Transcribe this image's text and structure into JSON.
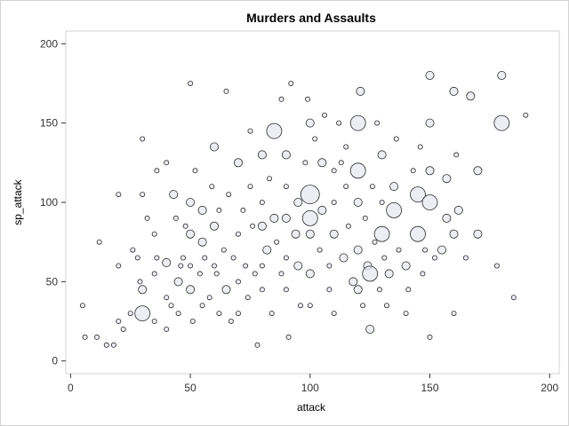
{
  "chart_data": {
    "type": "scatter",
    "subtype": "bubble",
    "title": "Murders and Assaults",
    "xlabel": "attack",
    "ylabel": "sp_attack",
    "xlim": [
      -2,
      204
    ],
    "ylim": [
      -8,
      208
    ],
    "xticks": [
      0,
      50,
      100,
      150,
      200
    ],
    "yticks": [
      0,
      50,
      100,
      150,
      200
    ],
    "grid": false,
    "legend": "none",
    "colors": {
      "fill": "#e6e8f0",
      "stroke": "#2b2b2b",
      "plot_border": "#d3d3d3",
      "frame_border": "#d3d3d3"
    },
    "points": [
      [
        5,
        35,
        1
      ],
      [
        6,
        15,
        1
      ],
      [
        11,
        15,
        1
      ],
      [
        12,
        75,
        1
      ],
      [
        15,
        10,
        1
      ],
      [
        18,
        10,
        1
      ],
      [
        20,
        60,
        1
      ],
      [
        20,
        105,
        1
      ],
      [
        20,
        25,
        1
      ],
      [
        22,
        20,
        1
      ],
      [
        25,
        30,
        1
      ],
      [
        26,
        70,
        1
      ],
      [
        28,
        65,
        1
      ],
      [
        29,
        50,
        1
      ],
      [
        30,
        30,
        3
      ],
      [
        30,
        45,
        2
      ],
      [
        30,
        140,
        1
      ],
      [
        30,
        105,
        1
      ],
      [
        32,
        90,
        1
      ],
      [
        35,
        25,
        1
      ],
      [
        35,
        55,
        1
      ],
      [
        35,
        80,
        1
      ],
      [
        36,
        120,
        1
      ],
      [
        36,
        65,
        1
      ],
      [
        40,
        40,
        1
      ],
      [
        40,
        62,
        2
      ],
      [
        40,
        125,
        1
      ],
      [
        40,
        20,
        1
      ],
      [
        42,
        35,
        1
      ],
      [
        43,
        105,
        2
      ],
      [
        44,
        90,
        1
      ],
      [
        45,
        50,
        2
      ],
      [
        45,
        30,
        1
      ],
      [
        46,
        60,
        1
      ],
      [
        47,
        65,
        1
      ],
      [
        48,
        85,
        1
      ],
      [
        50,
        175,
        1
      ],
      [
        50,
        60,
        1
      ],
      [
        50,
        45,
        2
      ],
      [
        50,
        100,
        2
      ],
      [
        50,
        80,
        2
      ],
      [
        51,
        25,
        1
      ],
      [
        52,
        120,
        1
      ],
      [
        54,
        55,
        1
      ],
      [
        55,
        95,
        2
      ],
      [
        55,
        75,
        2
      ],
      [
        55,
        35,
        1
      ],
      [
        56,
        65,
        1
      ],
      [
        58,
        40,
        1
      ],
      [
        59,
        110,
        1
      ],
      [
        60,
        135,
        2
      ],
      [
        60,
        85,
        2
      ],
      [
        60,
        60,
        1
      ],
      [
        61,
        55,
        1
      ],
      [
        62,
        95,
        1
      ],
      [
        62,
        30,
        1
      ],
      [
        64,
        70,
        1
      ],
      [
        65,
        45,
        2
      ],
      [
        65,
        170,
        1
      ],
      [
        66,
        105,
        1
      ],
      [
        67,
        25,
        1
      ],
      [
        68,
        65,
        1
      ],
      [
        70,
        80,
        1
      ],
      [
        70,
        50,
        1
      ],
      [
        70,
        30,
        1
      ],
      [
        70,
        125,
        2
      ],
      [
        72,
        95,
        1
      ],
      [
        73,
        60,
        1
      ],
      [
        74,
        40,
        1
      ],
      [
        75,
        110,
        1
      ],
      [
        75,
        145,
        1
      ],
      [
        76,
        85,
        1
      ],
      [
        77,
        55,
        1
      ],
      [
        78,
        10,
        1
      ],
      [
        80,
        130,
        2
      ],
      [
        80,
        85,
        2
      ],
      [
        80,
        100,
        1
      ],
      [
        80,
        60,
        1
      ],
      [
        80,
        45,
        1
      ],
      [
        82,
        70,
        2
      ],
      [
        83,
        115,
        1
      ],
      [
        84,
        30,
        1
      ],
      [
        85,
        145,
        3
      ],
      [
        85,
        90,
        2
      ],
      [
        86,
        75,
        1
      ],
      [
        88,
        165,
        1
      ],
      [
        88,
        55,
        1
      ],
      [
        90,
        130,
        2
      ],
      [
        90,
        110,
        1
      ],
      [
        90,
        90,
        2
      ],
      [
        90,
        65,
        1
      ],
      [
        90,
        45,
        1
      ],
      [
        91,
        15,
        1
      ],
      [
        92,
        175,
        1
      ],
      [
        94,
        80,
        2
      ],
      [
        95,
        100,
        2
      ],
      [
        95,
        60,
        2
      ],
      [
        96,
        35,
        1
      ],
      [
        98,
        125,
        1
      ],
      [
        99,
        165,
        1
      ],
      [
        100,
        105,
        4
      ],
      [
        100,
        90,
        3
      ],
      [
        100,
        150,
        2
      ],
      [
        100,
        80,
        2
      ],
      [
        100,
        55,
        2
      ],
      [
        100,
        35,
        1
      ],
      [
        102,
        140,
        1
      ],
      [
        104,
        70,
        1
      ],
      [
        105,
        125,
        2
      ],
      [
        105,
        95,
        2
      ],
      [
        106,
        155,
        1
      ],
      [
        108,
        60,
        1
      ],
      [
        108,
        45,
        1
      ],
      [
        110,
        120,
        1
      ],
      [
        110,
        80,
        2
      ],
      [
        110,
        100,
        1
      ],
      [
        110,
        30,
        1
      ],
      [
        112,
        150,
        1
      ],
      [
        113,
        125,
        1
      ],
      [
        114,
        65,
        2
      ],
      [
        115,
        135,
        1
      ],
      [
        115,
        110,
        1
      ],
      [
        116,
        85,
        1
      ],
      [
        118,
        50,
        2
      ],
      [
        120,
        150,
        3
      ],
      [
        120,
        120,
        3
      ],
      [
        120,
        100,
        2
      ],
      [
        120,
        70,
        2
      ],
      [
        120,
        45,
        2
      ],
      [
        121,
        170,
        2
      ],
      [
        122,
        35,
        1
      ],
      [
        123,
        90,
        1
      ],
      [
        124,
        60,
        2
      ],
      [
        125,
        55,
        3
      ],
      [
        125,
        20,
        2
      ],
      [
        126,
        110,
        1
      ],
      [
        127,
        75,
        1
      ],
      [
        128,
        150,
        1
      ],
      [
        129,
        45,
        1
      ],
      [
        130,
        130,
        2
      ],
      [
        130,
        80,
        3
      ],
      [
        130,
        100,
        1
      ],
      [
        131,
        65,
        1
      ],
      [
        132,
        35,
        1
      ],
      [
        133,
        55,
        2
      ],
      [
        135,
        110,
        2
      ],
      [
        135,
        95,
        3
      ],
      [
        136,
        140,
        1
      ],
      [
        137,
        70,
        1
      ],
      [
        140,
        60,
        2
      ],
      [
        140,
        30,
        1
      ],
      [
        141,
        45,
        1
      ],
      [
        143,
        120,
        1
      ],
      [
        145,
        105,
        3
      ],
      [
        145,
        80,
        3
      ],
      [
        146,
        135,
        1
      ],
      [
        147,
        55,
        1
      ],
      [
        148,
        70,
        1
      ],
      [
        150,
        120,
        2
      ],
      [
        150,
        150,
        2
      ],
      [
        150,
        180,
        2
      ],
      [
        150,
        100,
        3
      ],
      [
        150,
        15,
        1
      ],
      [
        152,
        65,
        1
      ],
      [
        155,
        70,
        2
      ],
      [
        157,
        115,
        2
      ],
      [
        157,
        90,
        2
      ],
      [
        160,
        170,
        2
      ],
      [
        160,
        80,
        2
      ],
      [
        160,
        30,
        1
      ],
      [
        161,
        130,
        1
      ],
      [
        162,
        95,
        2
      ],
      [
        165,
        65,
        1
      ],
      [
        167,
        167,
        2
      ],
      [
        170,
        120,
        2
      ],
      [
        170,
        80,
        2
      ],
      [
        178,
        60,
        1
      ],
      [
        180,
        180,
        2
      ],
      [
        180,
        150,
        3
      ],
      [
        185,
        40,
        1
      ],
      [
        190,
        155,
        1
      ]
    ]
  }
}
